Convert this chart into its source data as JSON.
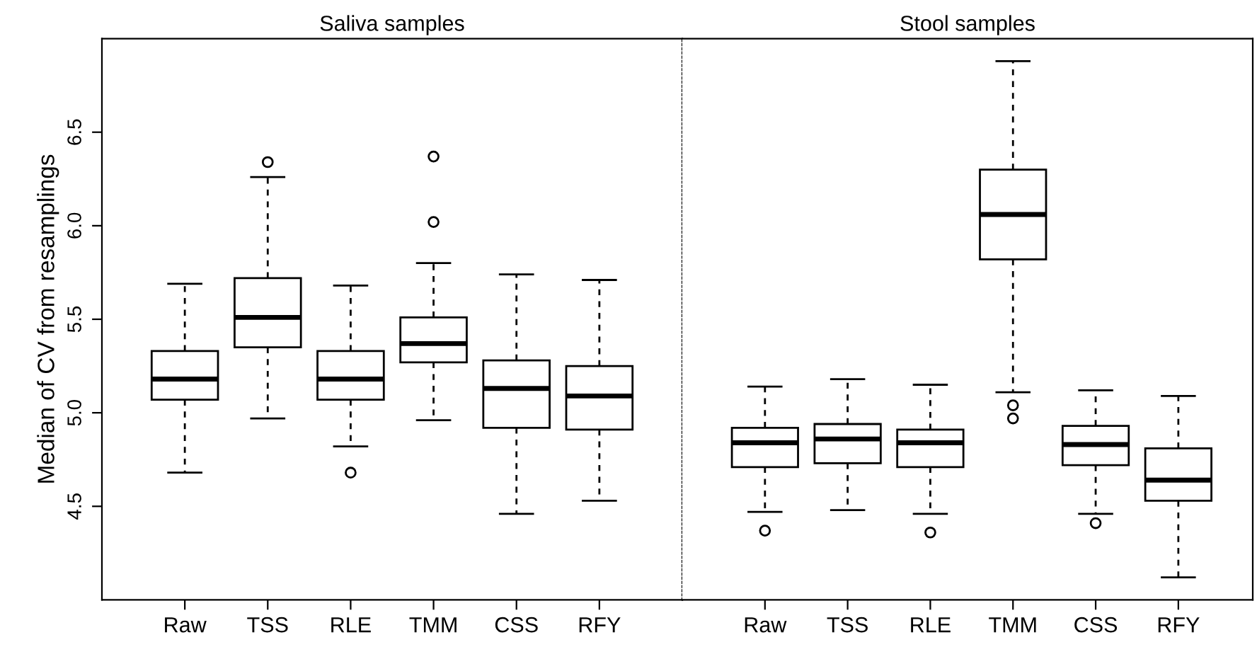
{
  "chart_data": [
    {
      "type": "box",
      "title": "Saliva samples",
      "ylabel": "Median of CV from resamplings",
      "categories": [
        "Raw",
        "TSS",
        "RLE",
        "TMM",
        "CSS",
        "RFY"
      ],
      "ylim": [
        4.0,
        7.0
      ],
      "yticks": [
        4.5,
        {
          "value": 5,
          "label": "5.0"
        },
        5.5,
        {
          "value": 6,
          "label": "6.0"
        },
        6.5
      ],
      "grid": false,
      "boxes": [
        {
          "low": 4.68,
          "q1": 5.07,
          "median": 5.18,
          "q3": 5.33,
          "high": 5.69
        },
        {
          "low": 4.97,
          "q1": 5.35,
          "median": 5.51,
          "q3": 5.72,
          "high": 6.26,
          "outliers": [
            6.34
          ]
        },
        {
          "low": 4.82,
          "q1": 5.07,
          "median": 5.18,
          "q3": 5.33,
          "high": 5.68,
          "outliers": [
            4.68
          ]
        },
        {
          "low": 4.96,
          "q1": 5.27,
          "median": 5.37,
          "q3": 5.51,
          "high": 5.8,
          "outliers": [
            6.02,
            6.37
          ]
        },
        {
          "low": 4.46,
          "q1": 4.92,
          "median": 5.13,
          "q3": 5.28,
          "high": 5.74
        },
        {
          "low": 4.53,
          "q1": 4.91,
          "median": 5.09,
          "q3": 5.25,
          "high": 5.71
        }
      ]
    },
    {
      "type": "box",
      "title": "Stool samples",
      "categories": [
        "Raw",
        "TSS",
        "RLE",
        "TMM",
        "CSS",
        "RFY"
      ],
      "ylim": [
        4.0,
        7.0
      ],
      "tick_labels": "x",
      "grid": false,
      "boxes": [
        {
          "low": 4.47,
          "q1": 4.71,
          "median": 4.84,
          "q3": 4.92,
          "high": 5.14,
          "outliers": [
            4.37
          ]
        },
        {
          "low": 4.48,
          "q1": 4.73,
          "median": 4.86,
          "q3": 4.94,
          "high": 5.18
        },
        {
          "low": 4.46,
          "q1": 4.71,
          "median": 4.84,
          "q3": 4.91,
          "high": 5.15,
          "outliers": [
            4.36
          ]
        },
        {
          "low": 5.11,
          "q1": 5.82,
          "median": 6.06,
          "q3": 6.3,
          "high": 6.88,
          "outliers": [
            5.04,
            4.97
          ]
        },
        {
          "low": 4.46,
          "q1": 4.72,
          "median": 4.83,
          "q3": 4.93,
          "high": 5.12,
          "outliers": [
            4.41
          ]
        },
        {
          "low": 4.12,
          "q1": 4.53,
          "median": 4.64,
          "q3": 4.81,
          "high": 5.09
        }
      ]
    }
  ]
}
